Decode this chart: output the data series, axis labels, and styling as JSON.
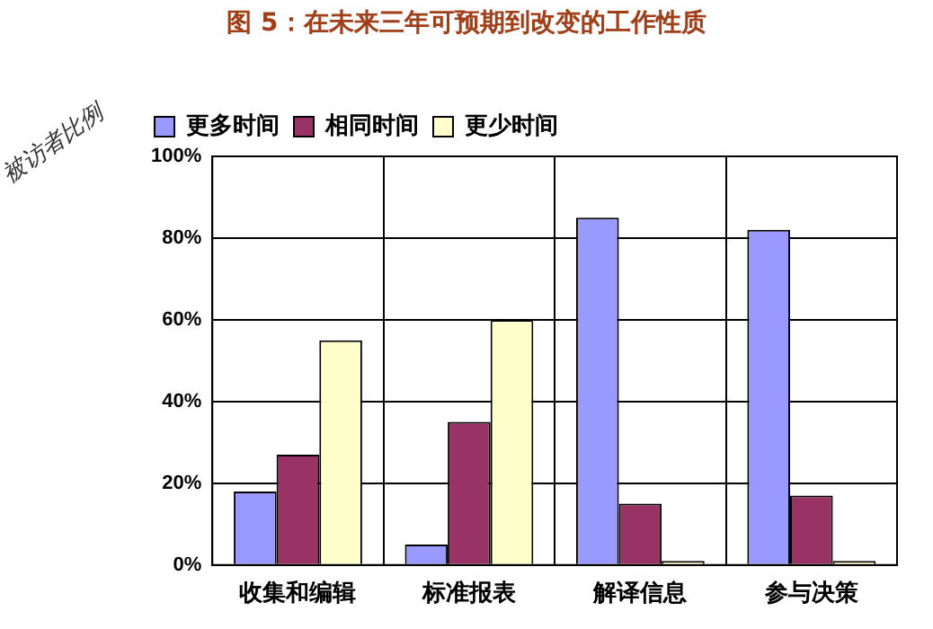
{
  "chart_data": {
    "type": "bar",
    "title": "图 5：在未来三年可预期到改变的工作性质",
    "ylabel": "被访者比例",
    "categories": [
      "收集和编辑",
      "标准报表",
      "解译信息",
      "参与决策"
    ],
    "series": [
      {
        "name": "更多时间",
        "color": "#9999ff",
        "values": [
          18,
          5,
          85,
          82
        ]
      },
      {
        "name": "相同时间",
        "color": "#993366",
        "values": [
          27,
          35,
          15,
          17
        ]
      },
      {
        "name": "更少时间",
        "color": "#ffffcc",
        "values": [
          55,
          60,
          1,
          1
        ]
      }
    ],
    "ylim": [
      0,
      100
    ],
    "yticks": [
      {
        "value": 0,
        "label": "0%"
      },
      {
        "value": 20,
        "label": "20%"
      },
      {
        "value": 40,
        "label": "40%"
      },
      {
        "value": 60,
        "label": "60%"
      },
      {
        "value": 80,
        "label": "80%"
      },
      {
        "value": 100,
        "label": "100%"
      }
    ],
    "grid": true,
    "legend": "top"
  }
}
